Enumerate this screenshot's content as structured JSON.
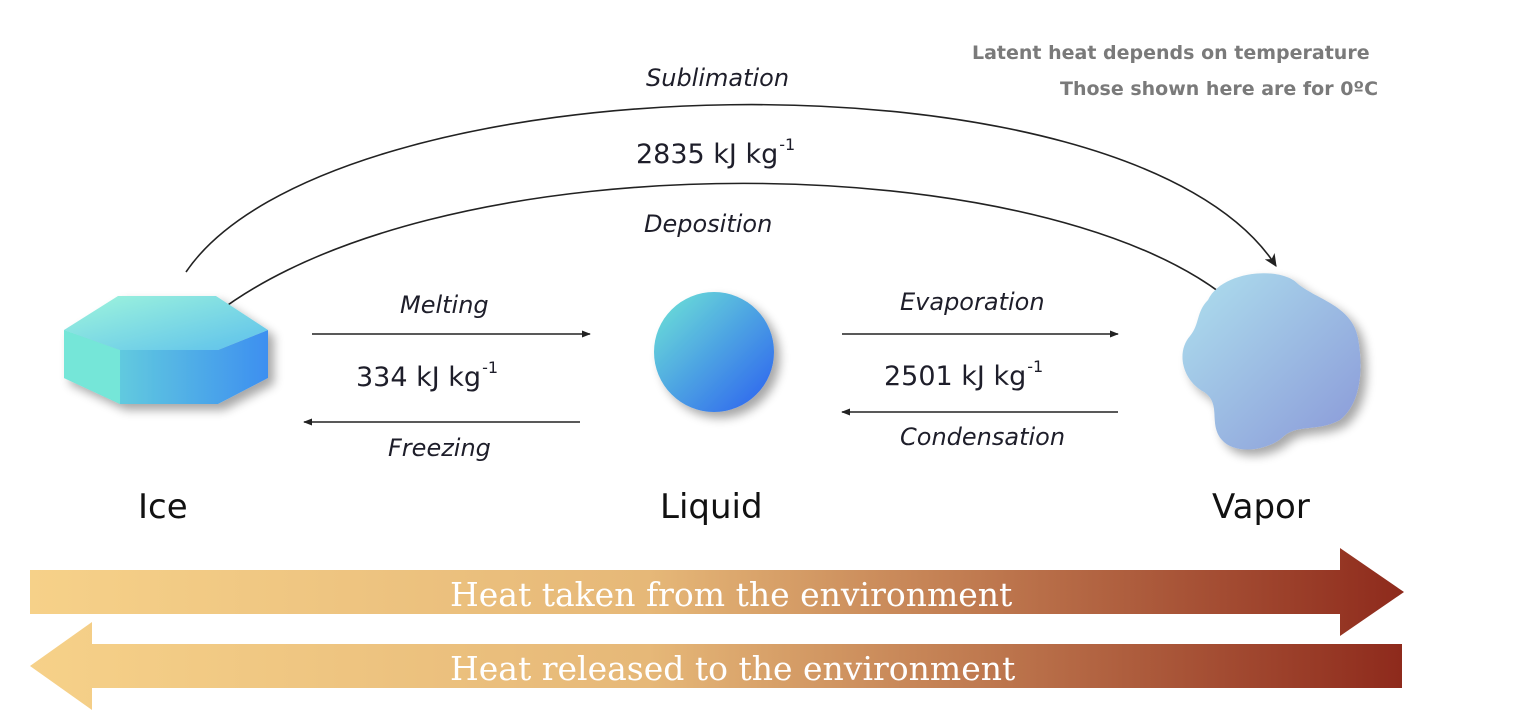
{
  "note": {
    "line1": "Latent heat depends on temperature",
    "line2": "Those shown here are for 0ºC"
  },
  "transitions": {
    "sublimation": {
      "label": "Sublimation"
    },
    "ice_vapor_heat": {
      "value": "2835 kJ kg",
      "exponent": "-1"
    },
    "deposition": {
      "label": "Deposition"
    },
    "melting": {
      "label": "Melting"
    },
    "ice_liquid_heat": {
      "value": "334 kJ kg",
      "exponent": "-1"
    },
    "freezing": {
      "label": "Freezing"
    },
    "evaporation": {
      "label": "Evaporation"
    },
    "liquid_vapor_heat": {
      "value": "2501 kJ kg",
      "exponent": "-1"
    },
    "condensation": {
      "label": "Condensation"
    }
  },
  "states": {
    "ice": "Ice",
    "liquid": "Liquid",
    "vapor": "Vapor"
  },
  "bands": {
    "taken": "Heat taken from the environment",
    "released": "Heat released to the environment"
  },
  "colors": {
    "band_light": "#f6d189",
    "band_dark": "#8e2a1c",
    "ice_light": "#8ef0d8",
    "ice_dark": "#3d8ff0",
    "liquid_light": "#6fe6d6",
    "liquid_dark": "#2a5ef0",
    "vapor_light": "#a9d9ec",
    "vapor_dark": "#8a98d8",
    "arrow": "#222222"
  }
}
